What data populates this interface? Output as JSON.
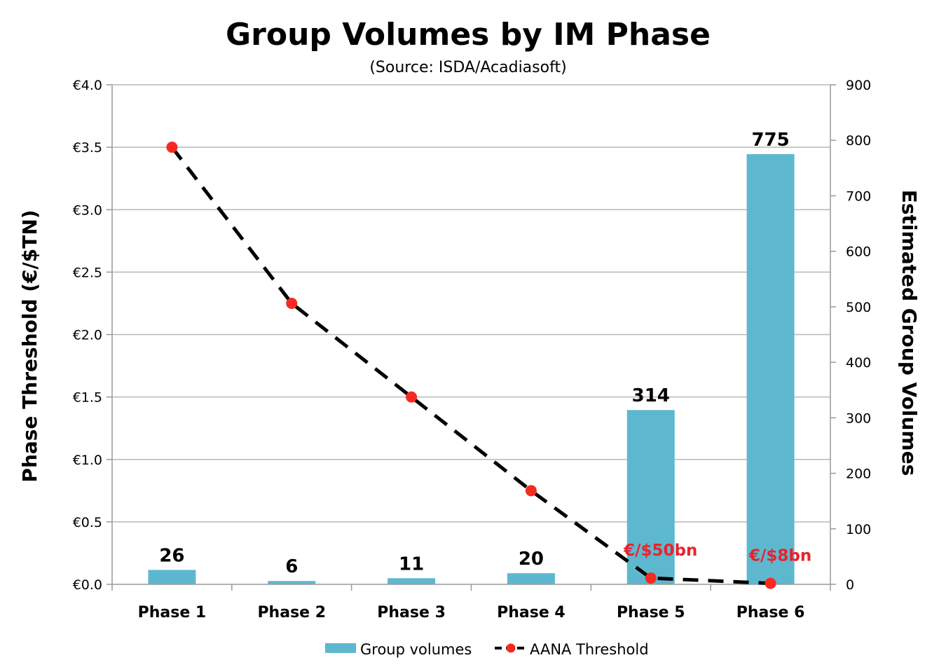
{
  "colors": {
    "bar": "#5db8cf",
    "line": "#000000",
    "marker": "#f52a20",
    "annotation": "#e8232b",
    "grid": "#b8b8b8"
  },
  "chart_data": {
    "type": "bar",
    "title": "Group Volumes by IM Phase",
    "subtitle": "(Source: ISDA/Acadiasoft)",
    "categories": [
      "Phase 1",
      "Phase 2",
      "Phase 3",
      "Phase 4",
      "Phase 5",
      "Phase 6"
    ],
    "y_left": {
      "label": "Phase Threshold (€/$TN)",
      "ylim": [
        0,
        4
      ],
      "ticks": [
        "€0.0",
        "€0.5",
        "€1.0",
        "€1.5",
        "€2.0",
        "€2.5",
        "€3.0",
        "€3.5",
        "€4.0"
      ]
    },
    "y_right": {
      "label": "Estimated Group Volumes",
      "ylim": [
        0,
        900
      ],
      "ticks": [
        "0",
        "100",
        "200",
        "300",
        "400",
        "500",
        "600",
        "700",
        "800",
        "900"
      ]
    },
    "grid": true,
    "legend_position": "bottom",
    "series": [
      {
        "name": "Group volumes",
        "kind": "bar",
        "axis": "right",
        "values": [
          26,
          6,
          11,
          20,
          314,
          775
        ],
        "data_labels": [
          "26",
          "6",
          "11",
          "20",
          "314",
          "775"
        ]
      },
      {
        "name": "AANA Threshold",
        "kind": "line",
        "style": "dashed",
        "axis": "left",
        "values": [
          3.5,
          2.25,
          1.5,
          0.75,
          0.05,
          0.008
        ]
      }
    ],
    "annotations": [
      {
        "category": "Phase 5",
        "text": "€/$50bn"
      },
      {
        "category": "Phase 6",
        "text": "€/$8bn"
      }
    ]
  }
}
